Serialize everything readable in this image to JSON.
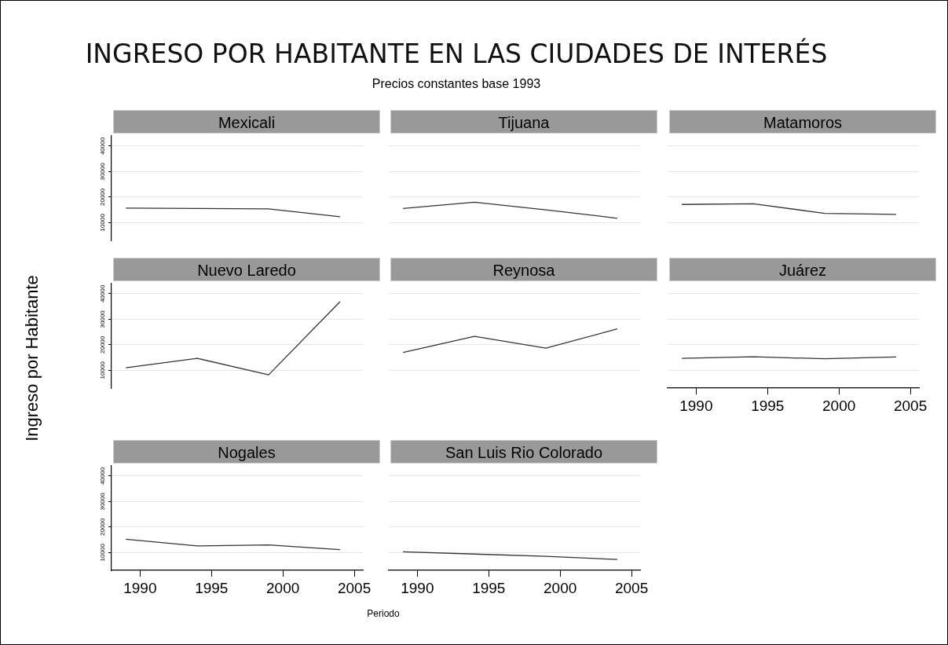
{
  "chart_data": [
    {
      "type": "line",
      "title": "Mexicali",
      "annotations": [
        "INGRESO POR HABITANTE EN LAS CIUDADES DE INTERÉS",
        "Precios constantes base 1993"
      ],
      "x": [
        1989,
        1994,
        1999,
        2004
      ],
      "values": [
        15700,
        15500,
        15400,
        12300
      ],
      "color": "#333333",
      "xlim": [
        1988,
        2005.6
      ],
      "ylim": [
        3000,
        44000
      ],
      "xticks": [
        1990,
        1995,
        2000,
        2005
      ],
      "yticks": [
        10000,
        20000,
        30000,
        40000
      ],
      "grid": "y",
      "tick_labels": "y"
    },
    {
      "type": "line",
      "title": "Tijuana",
      "x": [
        1989,
        1994,
        1999,
        2004
      ],
      "values": [
        15500,
        18000,
        15000,
        11700
      ],
      "color": "#333333",
      "xlim": [
        1988,
        2005.6
      ],
      "xticks": [
        1990,
        1995,
        2000,
        2005
      ],
      "yticks": [
        10000,
        20000,
        30000,
        40000
      ],
      "grid": "y",
      "tick_labels": false
    },
    {
      "type": "line",
      "title": "Matamoros",
      "x": [
        1989,
        1994,
        1999,
        2004
      ],
      "values": [
        17100,
        17400,
        13600,
        13200
      ],
      "color": "#333333",
      "xlim": [
        1988,
        2005.6
      ],
      "xticks": [
        1990,
        1995,
        2000,
        2005
      ],
      "yticks": [
        10000,
        20000,
        30000,
        40000
      ],
      "grid": "y",
      "tick_labels": false
    },
    {
      "type": "line",
      "title": "Nuevo Laredo",
      "ylabel": "Ingreso por Habitante",
      "x": [
        1989,
        1994,
        1999,
        2004
      ],
      "values": [
        11000,
        14700,
        8200,
        36900
      ],
      "color": "#333333",
      "xlim": [
        1988,
        2005.6
      ],
      "ylim": [
        3000,
        44000
      ],
      "xticks": [
        1990,
        1995,
        2000,
        2005
      ],
      "yticks": [
        10000,
        20000,
        30000,
        40000
      ],
      "grid": "y",
      "tick_labels": "y"
    },
    {
      "type": "line",
      "title": "Reynosa",
      "x": [
        1989,
        1994,
        1999,
        2004
      ],
      "values": [
        17000,
        23300,
        18700,
        26200
      ],
      "color": "#333333",
      "xlim": [
        1988,
        2005.6
      ],
      "xticks": [
        1990,
        1995,
        2000,
        2005
      ],
      "yticks": [
        10000,
        20000,
        30000,
        40000
      ],
      "grid": "y",
      "tick_labels": false
    },
    {
      "type": "line",
      "title": "Juárez",
      "x": [
        1989,
        1994,
        1999,
        2004
      ],
      "values": [
        14700,
        15300,
        14500,
        15200
      ],
      "color": "#333333",
      "xlim": [
        1988,
        2005.6
      ],
      "xticks": [
        1990,
        1995,
        2000,
        2005
      ],
      "yticks": [
        10000,
        20000,
        30000,
        40000
      ],
      "grid": "y",
      "tick_labels": "x"
    },
    {
      "type": "line",
      "title": "Nogales",
      "x": [
        1989,
        1994,
        1999,
        2004
      ],
      "values": [
        15200,
        12600,
        13000,
        11100
      ],
      "color": "#333333",
      "xlim": [
        1988,
        2005.6
      ],
      "ylim": [
        3000,
        44000
      ],
      "xticks": [
        1990,
        1995,
        2000,
        2005
      ],
      "yticks": [
        10000,
        20000,
        30000,
        40000
      ],
      "grid": "y"
    },
    {
      "type": "line",
      "title": "San Luis Rio Colorado",
      "xlabel": "Periodo",
      "x": [
        1989,
        1994,
        1999,
        2004
      ],
      "values": [
        10300,
        9400,
        8500,
        7300
      ],
      "color": "#333333",
      "xlim": [
        1988,
        2005.6
      ],
      "xticks": [
        1990,
        1995,
        2000,
        2005
      ],
      "yticks": [
        10000,
        20000,
        30000,
        40000
      ],
      "grid": "y",
      "tick_labels": "x"
    }
  ]
}
